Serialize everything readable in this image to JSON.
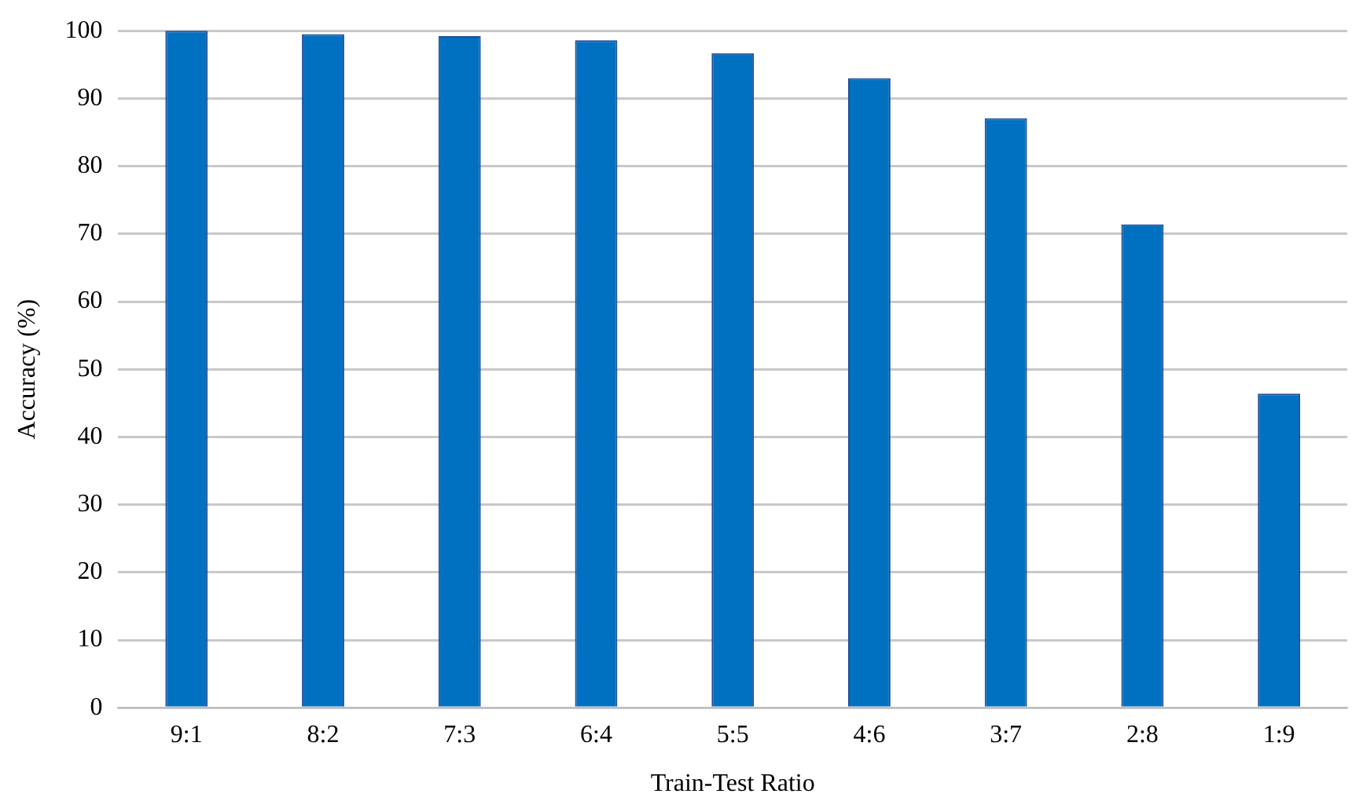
{
  "chart_data": {
    "type": "bar",
    "xlabel": "Train-Test Ratio",
    "ylabel": "Accuracy (%)",
    "categories": [
      "9:1",
      "8:2",
      "7:3",
      "6:4",
      "5:5",
      "4:6",
      "3:7",
      "2:8",
      "1:9"
    ],
    "values": [
      100,
      99.5,
      99.2,
      98.6,
      96.7,
      93.0,
      87.1,
      71.4,
      46.4
    ],
    "color": "#0070c0",
    "ylim": [
      0,
      100
    ],
    "yticks": [
      0,
      10,
      20,
      30,
      40,
      50,
      60,
      70,
      80,
      90,
      100
    ],
    "grid": "y",
    "legend": false
  }
}
